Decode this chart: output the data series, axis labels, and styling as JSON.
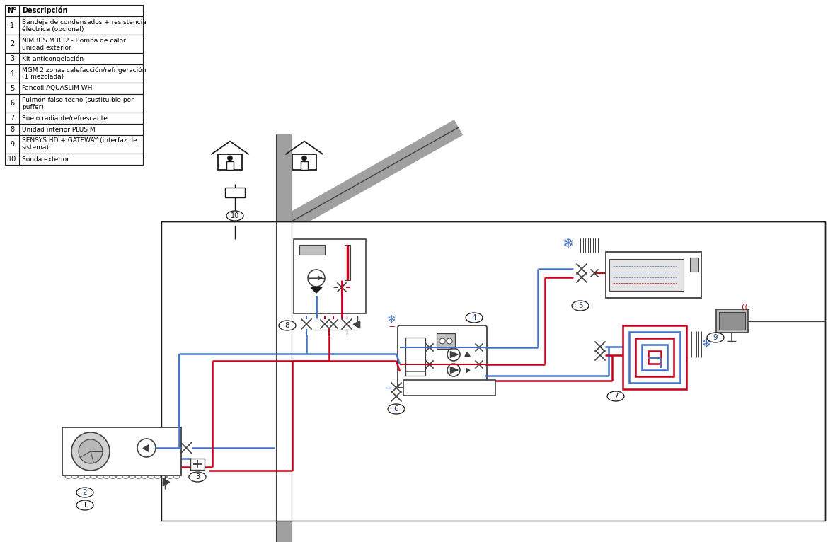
{
  "table_rows": [
    [
      "1",
      "Bandeja de condensados + resistencia\néléctrica (opcional)"
    ],
    [
      "2",
      "NIMBUS M R32 - Bomba de calor\nunidad exterior"
    ],
    [
      "3",
      "Kit anticongelación"
    ],
    [
      "4",
      "MGM 2 zonas calefacción/refrigeración\n(1 mezclada)"
    ],
    [
      "5",
      "Fancoil AQUASLIM WH"
    ],
    [
      "6",
      "Pulmón falso techo (sustituible por\npuffer)"
    ],
    [
      "7",
      "Suelo radiante/refrescante"
    ],
    [
      "8",
      "Unidad interior PLUS M"
    ],
    [
      "9",
      "SENSYS HD + GATEWAY (interfaz de\nsistema)"
    ],
    [
      "10",
      "Sonda exterior"
    ]
  ],
  "colors": {
    "red": "#c8001a",
    "blue": "#4472c4",
    "dark_gray": "#404040",
    "medium_gray": "#808080",
    "light_gray": "#c0c0c0",
    "black": "#1a1a1a",
    "white": "#ffffff",
    "wall_gray": "#a0a0a0"
  }
}
